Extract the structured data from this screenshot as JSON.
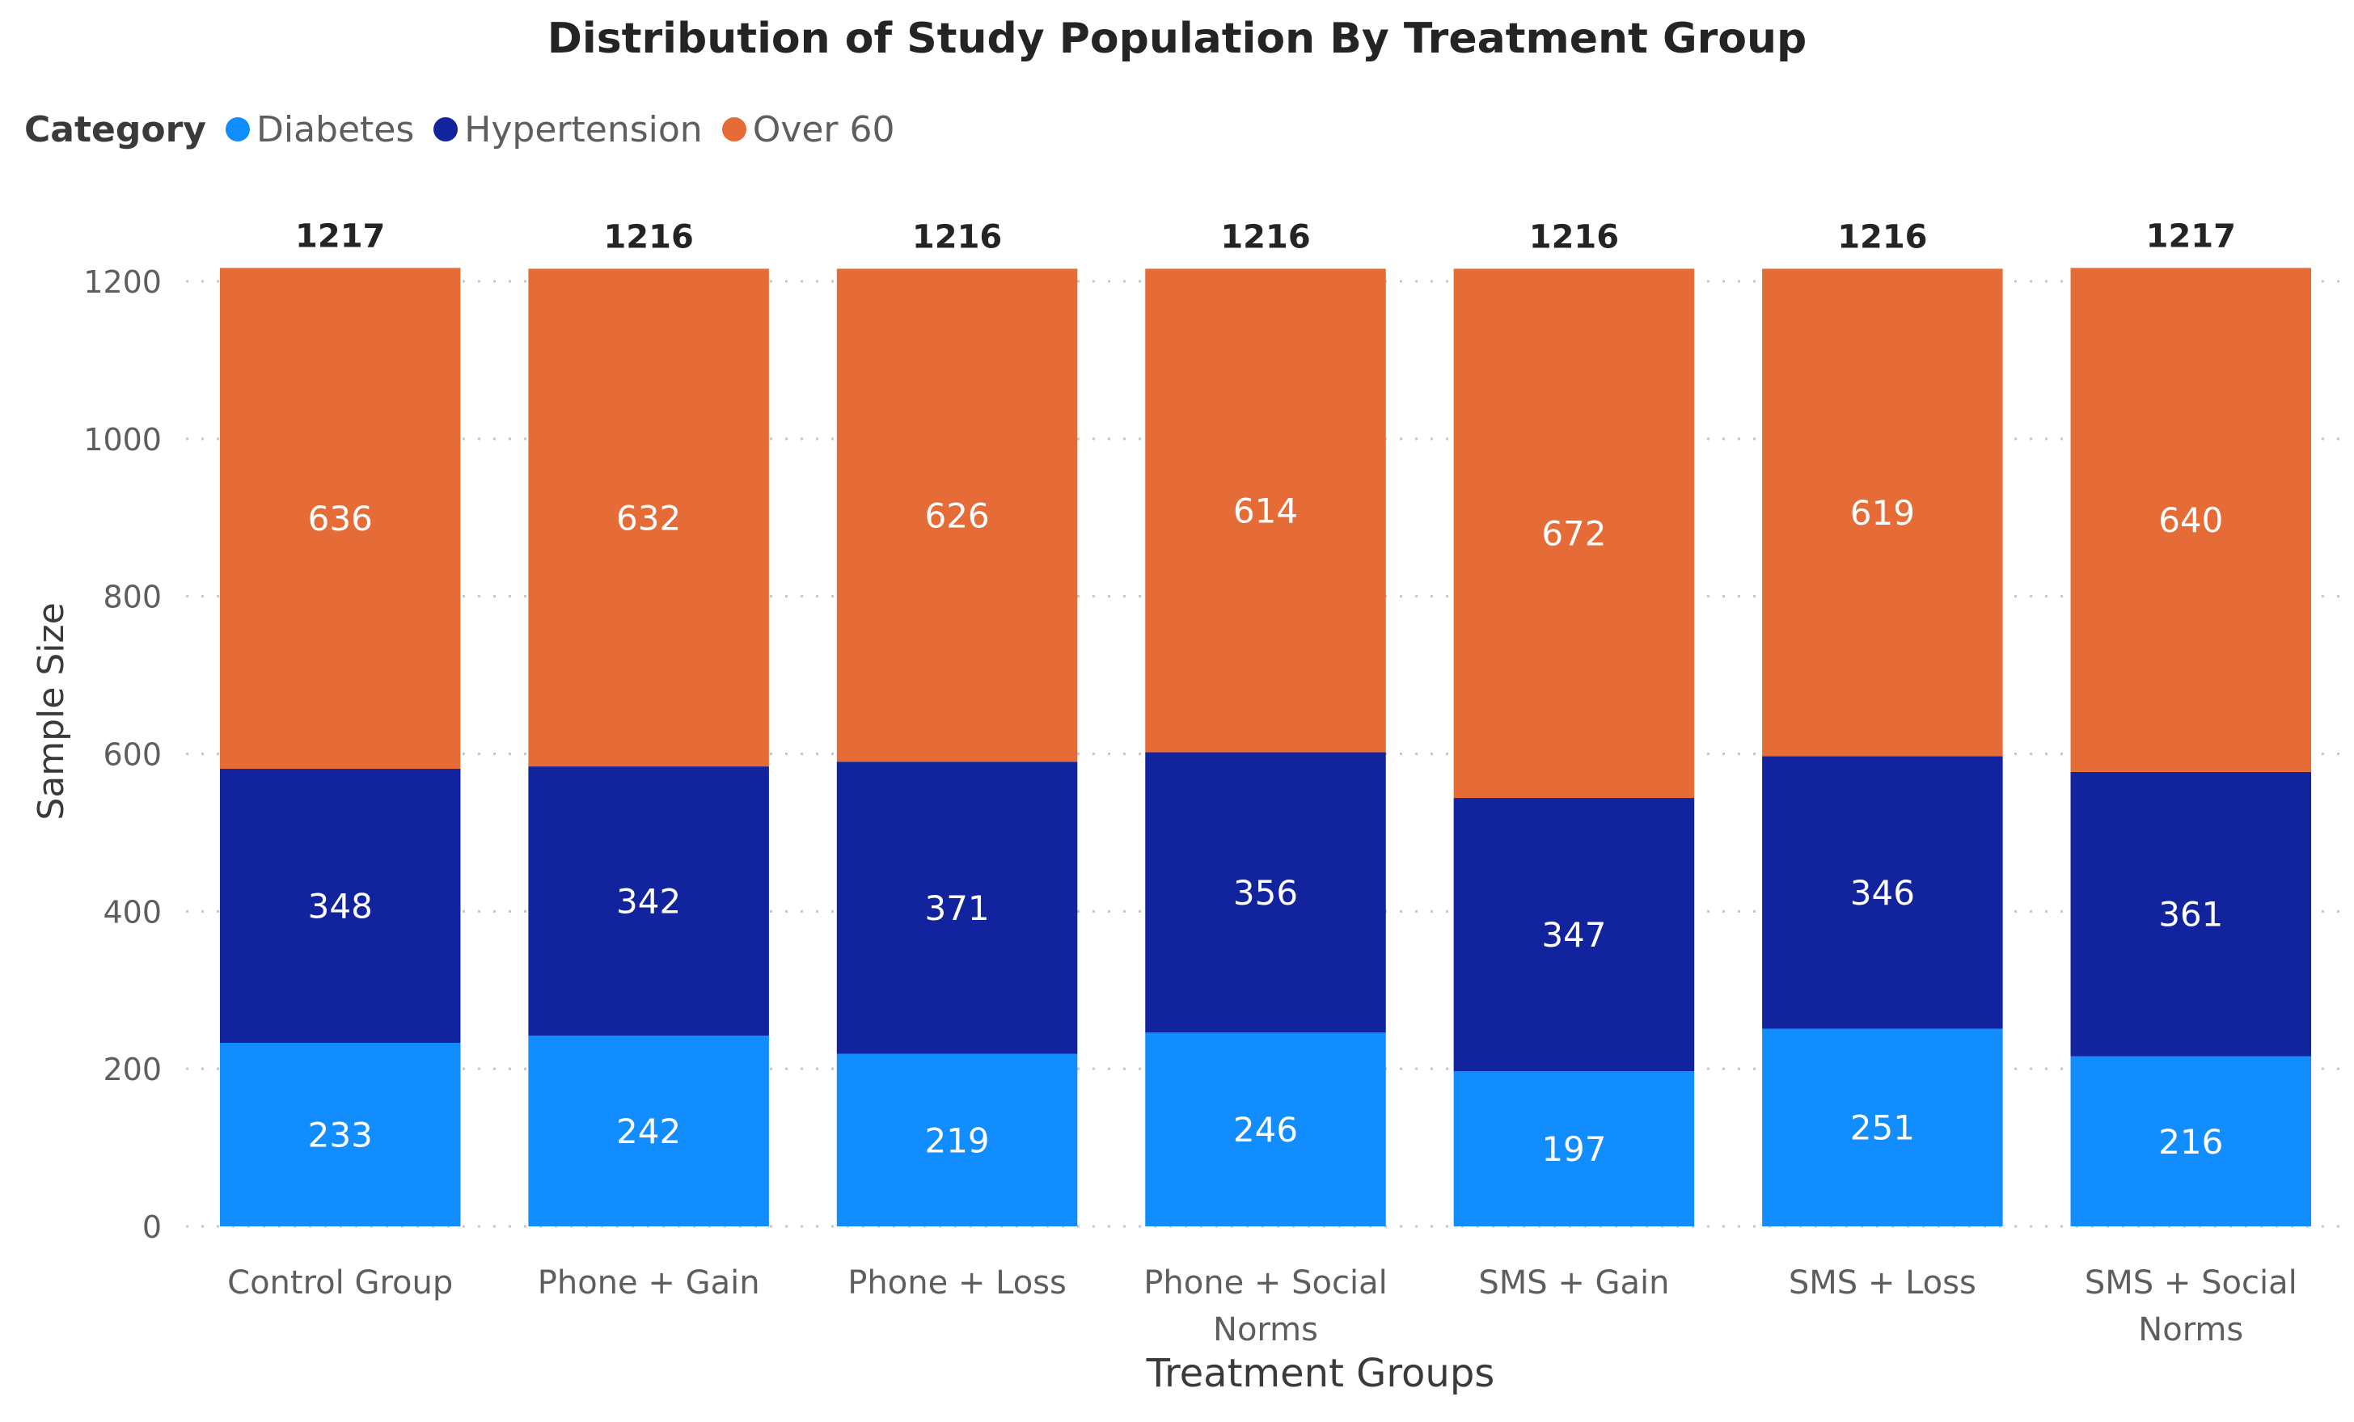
{
  "chart_data": {
    "type": "bar",
    "stacked": true,
    "title": "Distribution of Study Population By Treatment Group",
    "xlabel": "Treatment Groups",
    "ylabel": "Sample Size",
    "legend_title": "Category",
    "legend_position": "top-left",
    "grid": true,
    "ylim": [
      0,
      1200
    ],
    "yticks": [
      0,
      200,
      400,
      600,
      800,
      1000,
      1200
    ],
    "categories": [
      [
        "Control Group"
      ],
      [
        "Phone + Gain"
      ],
      [
        "Phone + Loss"
      ],
      [
        "Phone + Social",
        "Norms"
      ],
      [
        "SMS + Gain"
      ],
      [
        "SMS + Loss"
      ],
      [
        "SMS + Social",
        "Norms"
      ]
    ],
    "series": [
      {
        "name": "Diabetes",
        "color": "#118dff",
        "values": [
          233,
          242,
          219,
          246,
          197,
          251,
          216
        ]
      },
      {
        "name": "Hypertension",
        "color": "#12239e",
        "values": [
          348,
          342,
          371,
          356,
          347,
          346,
          361
        ]
      },
      {
        "name": "Over 60",
        "color": "#e66c37",
        "values": [
          636,
          632,
          626,
          614,
          672,
          619,
          640
        ]
      }
    ],
    "totals": [
      1217,
      1216,
      1216,
      1216,
      1216,
      1216,
      1217
    ]
  }
}
